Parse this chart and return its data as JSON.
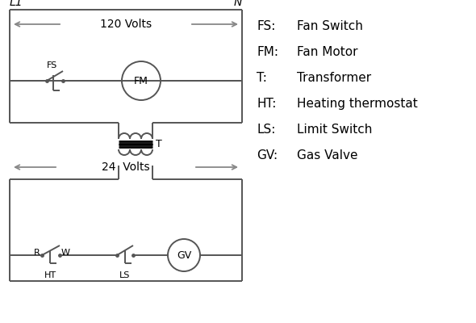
{
  "background_color": "#ffffff",
  "line_color": "#444444",
  "legend_items": [
    [
      "FS:",
      "Fan Switch"
    ],
    [
      "FM:",
      "Fan Motor"
    ],
    [
      "T:",
      "Transformer"
    ],
    [
      "HT:",
      "Heating thermostat"
    ],
    [
      "LS:",
      "Limit Switch"
    ],
    [
      "GV:",
      "Gas Valve"
    ]
  ],
  "arrow_color": "#888888",
  "circuit_line_color": "#555555"
}
